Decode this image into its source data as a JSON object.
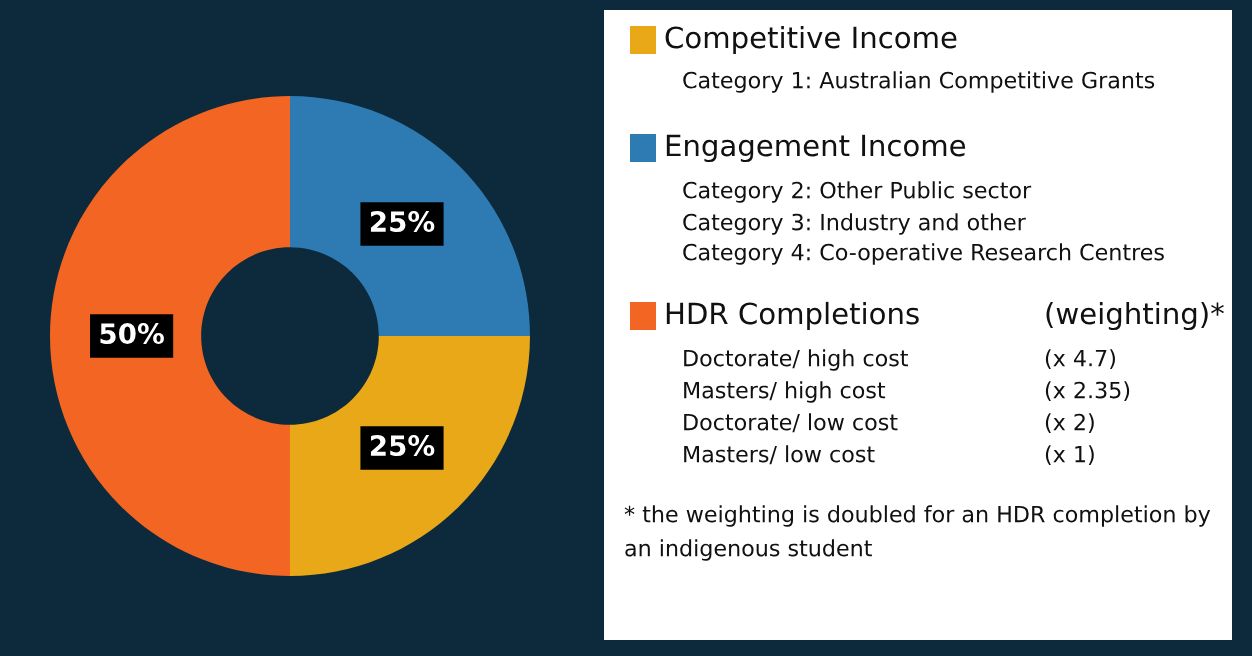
{
  "chart_data": {
    "type": "donut",
    "categories": [
      "Competitive Income",
      "Engagement Income",
      "HDR Completions"
    ],
    "values": [
      25,
      25,
      50
    ],
    "colors": [
      "#e8a817",
      "#2e7bb4",
      "#f26522"
    ],
    "value_labels": [
      "25%",
      "25%",
      "50%"
    ],
    "legend": "right",
    "annotations": [
      "Category 1: Australian Competitive Grants",
      "Category 2: Other Public sector",
      "Category 3: Industry and other",
      "Category 4: Co-operative Research Centres",
      "(weighting)*",
      "Doctorate/ high cost",
      "(x 4.7)",
      "Masters/ high cost",
      "(x 2.35)",
      "Doctorate/ low cost",
      "(x 2)",
      "Masters/ low cost",
      "(x 1)",
      "* the weighting is doubled for an HDR completion by",
      "an indigenous student"
    ]
  }
}
